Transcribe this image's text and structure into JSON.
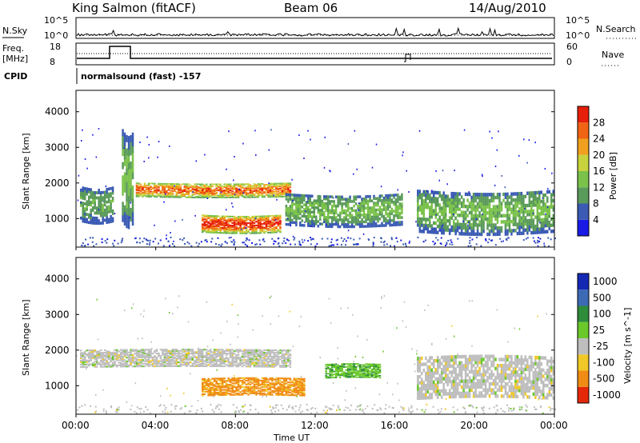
{
  "header": {
    "station": "King Salmon (fitACF)",
    "beam": "Beam 06",
    "date": "14/Aug/2010"
  },
  "nsky_panel": {
    "left_label": "N.Sky",
    "ticks": [
      "10^5",
      "10^0"
    ],
    "right_label": "N.Search",
    "right_ticks": [
      "10^5",
      "10^0"
    ]
  },
  "freq_panel": {
    "left_label_line1": "Freq.",
    "left_label_line2": "[MHz]",
    "ticks": [
      "18",
      "8"
    ],
    "right_label": "Nave",
    "right_ticks": [
      "60",
      "0"
    ]
  },
  "cpid_panel": {
    "label": "CPID",
    "text": "normalsound (fast) -157"
  },
  "colors": {
    "power": [
      "#1a1ae6",
      "#3a5ab4",
      "#5a9a5a",
      "#7ac24a",
      "#c8d23c",
      "#f0a01e",
      "#f06414",
      "#e61e0a"
    ],
    "velocity": [
      "#1428b4",
      "#3c6ab4",
      "#2e8c3a",
      "#6ac82a",
      "#bebebe",
      "#f0c828",
      "#f08c14",
      "#e6280a"
    ]
  },
  "chart_data": [
    {
      "type": "heatmap",
      "ylabel": "Slant Range [km]",
      "y_ticks": [
        "1000",
        "2000",
        "3000",
        "4000"
      ],
      "ylim": [
        200,
        4600
      ],
      "xlim_hours": [
        0,
        24
      ],
      "colorbar_label": "Power [dB]",
      "colorbar_ticks": [
        "4",
        "8",
        "12",
        "16",
        "20",
        "24",
        "28"
      ],
      "colorbar_range": [
        0,
        32
      ],
      "bands": [
        {
          "t0": 2.3,
          "t1": 2.9,
          "r_low": 900,
          "r_high": 3500,
          "level": 0.35
        },
        {
          "t0": 0.2,
          "t1": 1.9,
          "r_low": 900,
          "r_high": 1900,
          "level": 0.3
        },
        {
          "t0": 3.0,
          "t1": 10.8,
          "r_low": 1600,
          "r_high": 2000,
          "level": 0.7
        },
        {
          "t0": 6.3,
          "t1": 10.3,
          "r_low": 600,
          "r_high": 1100,
          "level": 0.8
        },
        {
          "t0": 10.5,
          "t1": 16.4,
          "r_low": 800,
          "r_high": 1700,
          "level": 0.35
        },
        {
          "t0": 17.1,
          "t1": 24.0,
          "r_low": 600,
          "r_high": 1800,
          "level": 0.35
        }
      ]
    },
    {
      "type": "heatmap",
      "ylabel": "Slant Range [km]",
      "y_ticks": [
        "1000",
        "2000",
        "3000",
        "4000"
      ],
      "ylim": [
        200,
        4600
      ],
      "xlim_hours": [
        0,
        24
      ],
      "colorbar_label": "Velocity [m s^-1]",
      "colorbar_ticks": [
        "1000",
        "500",
        "100",
        "25",
        "-25",
        "-100",
        "-500",
        "-1000"
      ],
      "bands": [
        {
          "t0": 0.2,
          "t1": 10.8,
          "r_low": 1500,
          "r_high": 2000,
          "category": "slow"
        },
        {
          "t0": 6.3,
          "t1": 11.5,
          "r_low": 700,
          "r_high": 1200,
          "category": "away"
        },
        {
          "t0": 12.5,
          "t1": 15.3,
          "r_low": 1200,
          "r_high": 1600,
          "category": "toward"
        },
        {
          "t0": 17.1,
          "t1": 24.0,
          "r_low": 600,
          "r_high": 1800,
          "category": "slow"
        }
      ]
    }
  ],
  "x_axis": {
    "label": "Time UT",
    "ticks": [
      "00:00",
      "04:00",
      "08:00",
      "12:00",
      "16:00",
      "20:00",
      "00:00"
    ]
  }
}
